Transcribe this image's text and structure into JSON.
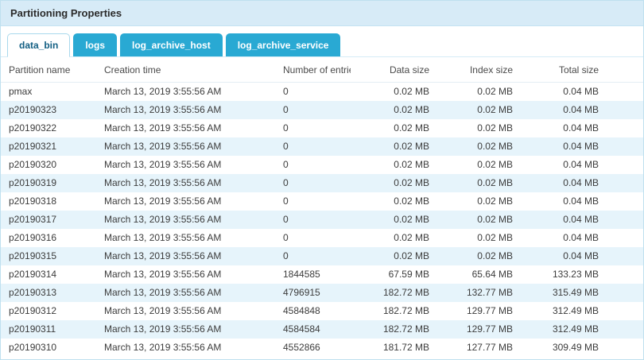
{
  "header": {
    "title": "Partitioning Properties"
  },
  "tabs": [
    {
      "label": "data_bin",
      "active": true
    },
    {
      "label": "logs",
      "active": false
    },
    {
      "label": "log_archive_host",
      "active": false
    },
    {
      "label": "log_archive_service",
      "active": false
    }
  ],
  "colors": {
    "titlebar_bg": "#d7ebf7",
    "tab_bg": "#29a9d3",
    "tab_active_text": "#135f83",
    "row_stripe": "#e6f4fb"
  },
  "table": {
    "columns": [
      "Partition name",
      "Creation time",
      "Number of entries",
      "Data size",
      "Index size",
      "Total size"
    ],
    "rows": [
      [
        "pmax",
        "March 13, 2019 3:55:56 AM",
        "0",
        "0.02 MB",
        "0.02 MB",
        "0.04 MB"
      ],
      [
        "p20190323",
        "March 13, 2019 3:55:56 AM",
        "0",
        "0.02 MB",
        "0.02 MB",
        "0.04 MB"
      ],
      [
        "p20190322",
        "March 13, 2019 3:55:56 AM",
        "0",
        "0.02 MB",
        "0.02 MB",
        "0.04 MB"
      ],
      [
        "p20190321",
        "March 13, 2019 3:55:56 AM",
        "0",
        "0.02 MB",
        "0.02 MB",
        "0.04 MB"
      ],
      [
        "p20190320",
        "March 13, 2019 3:55:56 AM",
        "0",
        "0.02 MB",
        "0.02 MB",
        "0.04 MB"
      ],
      [
        "p20190319",
        "March 13, 2019 3:55:56 AM",
        "0",
        "0.02 MB",
        "0.02 MB",
        "0.04 MB"
      ],
      [
        "p20190318",
        "March 13, 2019 3:55:56 AM",
        "0",
        "0.02 MB",
        "0.02 MB",
        "0.04 MB"
      ],
      [
        "p20190317",
        "March 13, 2019 3:55:56 AM",
        "0",
        "0.02 MB",
        "0.02 MB",
        "0.04 MB"
      ],
      [
        "p20190316",
        "March 13, 2019 3:55:56 AM",
        "0",
        "0.02 MB",
        "0.02 MB",
        "0.04 MB"
      ],
      [
        "p20190315",
        "March 13, 2019 3:55:56 AM",
        "0",
        "0.02 MB",
        "0.02 MB",
        "0.04 MB"
      ],
      [
        "p20190314",
        "March 13, 2019 3:55:56 AM",
        "1844585",
        "67.59 MB",
        "65.64 MB",
        "133.23 MB"
      ],
      [
        "p20190313",
        "March 13, 2019 3:55:56 AM",
        "4796915",
        "182.72 MB",
        "132.77 MB",
        "315.49 MB"
      ],
      [
        "p20190312",
        "March 13, 2019 3:55:56 AM",
        "4584848",
        "182.72 MB",
        "129.77 MB",
        "312.49 MB"
      ],
      [
        "p20190311",
        "March 13, 2019 3:55:56 AM",
        "4584584",
        "182.72 MB",
        "129.77 MB",
        "312.49 MB"
      ],
      [
        "p20190310",
        "March 13, 2019 3:55:56 AM",
        "4552866",
        "181.72 MB",
        "127.77 MB",
        "309.49 MB"
      ]
    ]
  }
}
